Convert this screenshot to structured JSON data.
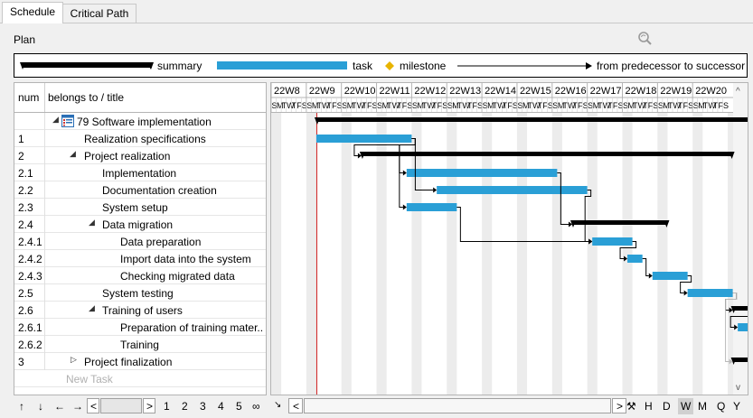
{
  "tabs": [
    {
      "label": "Schedule",
      "active": true
    },
    {
      "label": "Critical Path",
      "active": false
    }
  ],
  "plan_label": "Plan",
  "legend": {
    "summary": "summary",
    "task": "task",
    "milestone": "milestone",
    "link": "from predecessor to successor",
    "colors": {
      "summary": "#000000",
      "task": "#2a9fd6",
      "milestone": "#e8b400"
    }
  },
  "grid": {
    "col_num": "num",
    "col_title": "belongs to / title",
    "rows": [
      {
        "num": "",
        "title": "79 Software implementation",
        "level": 0,
        "toggle": "open",
        "icon": "project-icon"
      },
      {
        "num": "1",
        "title": "Realization specifications",
        "level": 1,
        "toggle": ""
      },
      {
        "num": "2",
        "title": "Project realization",
        "level": 1,
        "toggle": "open"
      },
      {
        "num": "2.1",
        "title": "Implementation",
        "level": 2,
        "toggle": ""
      },
      {
        "num": "2.2",
        "title": "Documentation creation",
        "level": 2,
        "toggle": ""
      },
      {
        "num": "2.3",
        "title": "System setup",
        "level": 2,
        "toggle": ""
      },
      {
        "num": "2.4",
        "title": "Data migration",
        "level": 2,
        "toggle": "open"
      },
      {
        "num": "2.4.1",
        "title": "Data preparation",
        "level": 3,
        "toggle": ""
      },
      {
        "num": "2.4.2",
        "title": "Import data into the system",
        "level": 3,
        "toggle": ""
      },
      {
        "num": "2.4.3",
        "title": "Checking migrated data",
        "level": 3,
        "toggle": ""
      },
      {
        "num": "2.5",
        "title": "System testing",
        "level": 2,
        "toggle": ""
      },
      {
        "num": "2.6",
        "title": "Training of users",
        "level": 2,
        "toggle": "open"
      },
      {
        "num": "2.6.1",
        "title": "Preparation of training mater..",
        "level": 3,
        "toggle": ""
      },
      {
        "num": "2.6.2",
        "title": "Training",
        "level": 3,
        "toggle": ""
      },
      {
        "num": "3",
        "title": "Project finalization",
        "level": 1,
        "toggle": "closed"
      }
    ],
    "new_task": "New Task"
  },
  "timeline": {
    "weeks": [
      "22W8",
      "22W9",
      "22W10",
      "22W11",
      "22W12",
      "22W13",
      "22W14",
      "22W15",
      "22W16",
      "22W17",
      "22W18",
      "22W19",
      "22W20"
    ],
    "day_letters": [
      "S",
      "M",
      "T",
      "W",
      "T",
      "F",
      "S"
    ]
  },
  "bars": [
    {
      "row": 0,
      "type": "summary",
      "start": 9,
      "end": 109
    },
    {
      "row": 1,
      "type": "task",
      "start": 9,
      "end": 28
    },
    {
      "row": 2,
      "type": "summary",
      "start": 18,
      "end": 92
    },
    {
      "row": 3,
      "type": "task",
      "start": 27,
      "end": 57
    },
    {
      "row": 4,
      "type": "task",
      "start": 33,
      "end": 63
    },
    {
      "row": 5,
      "type": "task",
      "start": 27,
      "end": 37
    },
    {
      "row": 6,
      "type": "summary",
      "start": 60,
      "end": 79
    },
    {
      "row": 7,
      "type": "task",
      "start": 64,
      "end": 72
    },
    {
      "row": 8,
      "type": "task",
      "start": 71,
      "end": 74
    },
    {
      "row": 9,
      "type": "task",
      "start": 76,
      "end": 83
    },
    {
      "row": 10,
      "type": "task",
      "start": 83,
      "end": 92
    },
    {
      "row": 11,
      "type": "summary",
      "start": 92,
      "end": 109
    },
    {
      "row": 12,
      "type": "task",
      "start": 93,
      "end": 97
    },
    {
      "row": 13,
      "type": "task",
      "start": 101,
      "end": 107
    },
    {
      "row": 14,
      "type": "summary",
      "start": 92,
      "end": 118
    }
  ],
  "today_day": 9,
  "grid_nav": {
    "arrows": [
      "↑",
      "↓",
      "←",
      "→"
    ],
    "prev": "<",
    "next": ">",
    "pages": [
      "1",
      "2",
      "3",
      "4",
      "5",
      "∞"
    ]
  },
  "zoom": {
    "items": [
      "⚒",
      "H",
      "D",
      "W",
      "M",
      "Q",
      "Y"
    ],
    "active": "W"
  }
}
